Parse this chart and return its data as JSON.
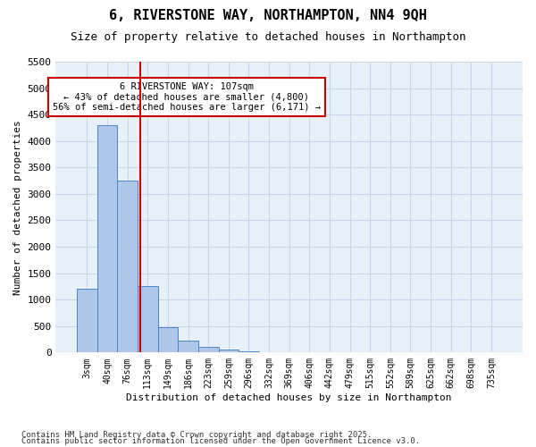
{
  "title": "6, RIVERSTONE WAY, NORTHAMPTON, NN4 9QH",
  "subtitle": "Size of property relative to detached houses in Northampton",
  "xlabel": "Distribution of detached houses by size in Northampton",
  "ylabel": "Number of detached properties",
  "bin_labels": [
    "3sqm",
    "40sqm",
    "76sqm",
    "113sqm",
    "149sqm",
    "186sqm",
    "223sqm",
    "259sqm",
    "296sqm",
    "332sqm",
    "369sqm",
    "406sqm",
    "442sqm",
    "479sqm",
    "515sqm",
    "552sqm",
    "589sqm",
    "625sqm",
    "662sqm",
    "698sqm",
    "735sqm"
  ],
  "bar_values": [
    1200,
    4300,
    3250,
    1250,
    480,
    220,
    100,
    50,
    20,
    10,
    5,
    3,
    2,
    1,
    1,
    1,
    0,
    0,
    0,
    0,
    0
  ],
  "bar_color": "#aec6e8",
  "bar_edge_color": "#4a86c8",
  "red_line_x": 2.65,
  "annotation_text": "6 RIVERSTONE WAY: 107sqm\n← 43% of detached houses are smaller (4,800)\n56% of semi-detached houses are larger (6,171) →",
  "annotation_box_color": "#ffffff",
  "annotation_box_edge": "#cc0000",
  "ylim": [
    0,
    5500
  ],
  "yticks": [
    0,
    500,
    1000,
    1500,
    2000,
    2500,
    3000,
    3500,
    4000,
    4500,
    5000,
    5500
  ],
  "red_line_color": "#cc0000",
  "grid_color": "#c8d8e8",
  "bg_color": "#e8f0f8",
  "footer1": "Contains HM Land Registry data © Crown copyright and database right 2025.",
  "footer2": "Contains public sector information licensed under the Open Government Licence v3.0."
}
